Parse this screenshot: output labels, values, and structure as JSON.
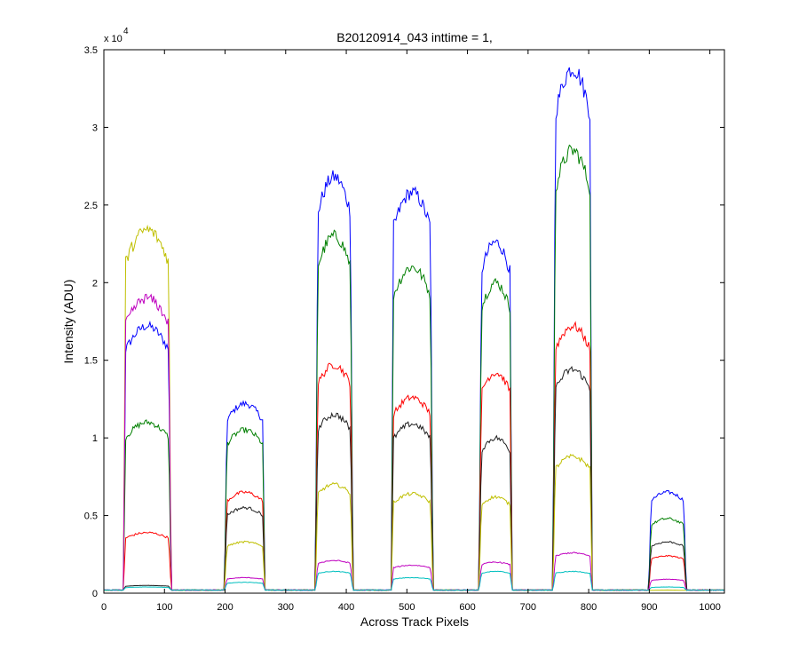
{
  "chart_data": {
    "type": "line",
    "title": "B20120914_043 inttime = 1,",
    "xlabel": "Across Track Pixels",
    "ylabel": "Intensity (ADU)",
    "y_exponent_base": "x 10",
    "y_exponent_power": "4",
    "xlim": [
      0,
      1024
    ],
    "ylim": [
      0,
      35000
    ],
    "x_ticks": [
      0,
      100,
      200,
      300,
      400,
      500,
      600,
      700,
      800,
      900,
      1000
    ],
    "x_tick_labels": [
      "0",
      "100",
      "200",
      "300",
      "400",
      "500",
      "600",
      "700",
      "800",
      "900",
      "1000"
    ],
    "y_ticks": [
      0,
      5000,
      10000,
      15000,
      20000,
      25000,
      30000,
      35000
    ],
    "y_tick_labels": [
      "0",
      "0.5",
      "1",
      "1.5",
      "2",
      "2.5",
      "3",
      "3.5"
    ],
    "grid": false,
    "baseline": 200,
    "segments": [
      {
        "rise": 33,
        "fall": 110
      },
      {
        "rise": 200,
        "fall": 265
      },
      {
        "rise": 350,
        "fall": 410
      },
      {
        "rise": 475,
        "fall": 542
      },
      {
        "rise": 620,
        "fall": 673
      },
      {
        "rise": 742,
        "fall": 805
      },
      {
        "rise": 900,
        "fall": 960
      }
    ],
    "series": [
      {
        "color": "#0000ff",
        "plateau_values": [
          17200,
          12200,
          26800,
          25800,
          22600,
          33800,
          6500
        ]
      },
      {
        "color": "#007f00",
        "plateau_values": [
          11000,
          10500,
          23000,
          21000,
          20000,
          28500,
          4800
        ]
      },
      {
        "color": "#ff0000",
        "plateau_values": [
          3900,
          6500,
          14700,
          12600,
          14200,
          17200,
          2400
        ]
      },
      {
        "color": "#202020",
        "plateau_values": [
          500,
          5500,
          11500,
          10900,
          10000,
          14400,
          3300
        ]
      },
      {
        "color": "#bfbf00",
        "plateau_values": [
          23400,
          3300,
          7000,
          6400,
          6200,
          8800,
          200
        ]
      },
      {
        "color": "#bf00bf",
        "plateau_values": [
          19000,
          1000,
          2100,
          1800,
          2000,
          2600,
          900
        ]
      },
      {
        "color": "#00bfbf",
        "plateau_values": [
          400,
          700,
          1400,
          1000,
          1400,
          1400,
          400
        ]
      }
    ]
  }
}
